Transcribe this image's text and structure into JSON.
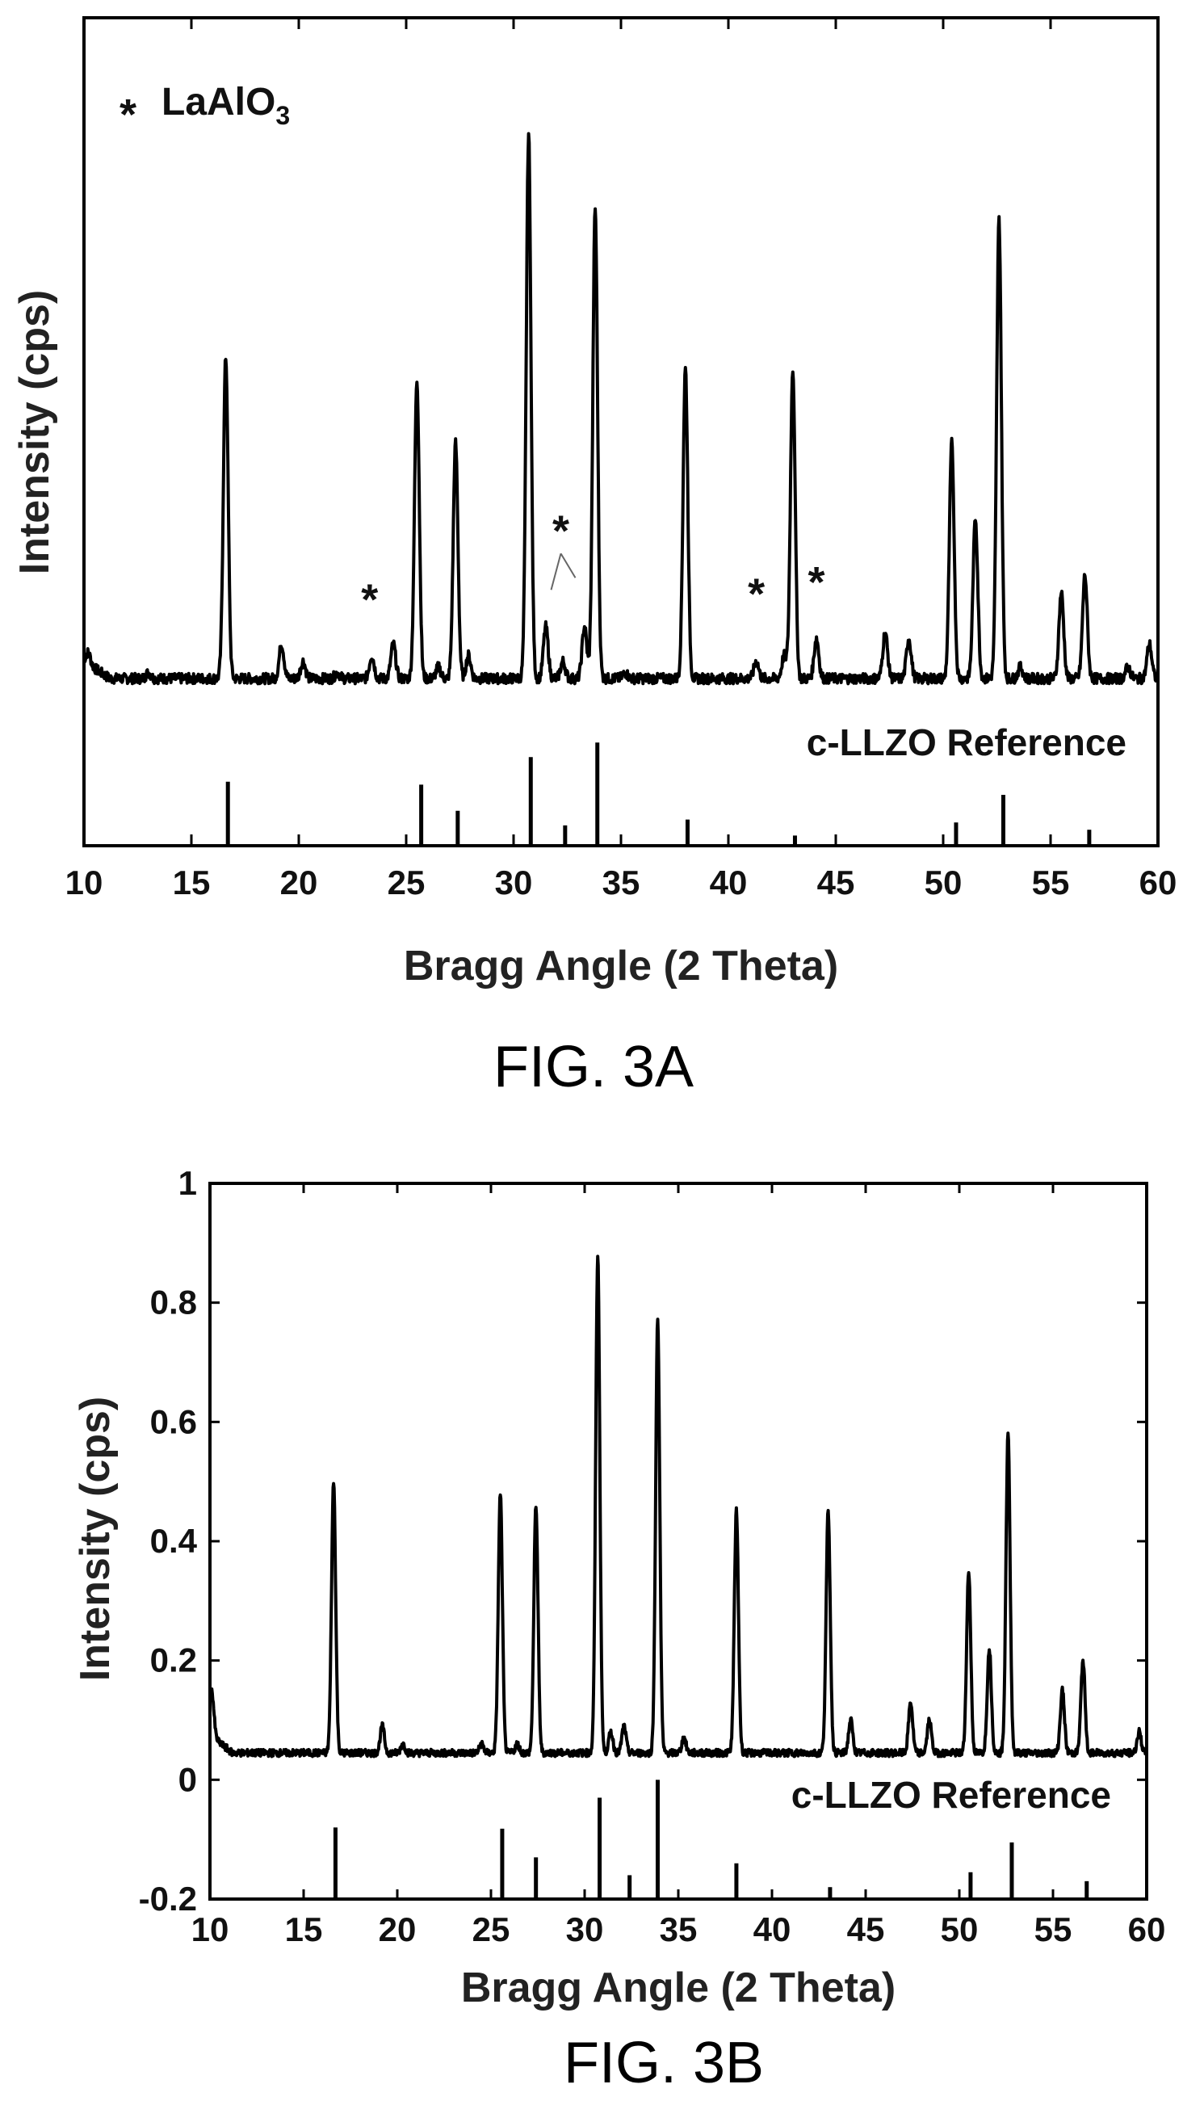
{
  "chart_data": [
    {
      "type": "line",
      "figure_label": "FIG. 3A",
      "xlabel": "Bragg Angle (2 Theta)",
      "ylabel": "Intensity (cps)",
      "xlim": [
        10,
        60
      ],
      "xticks": [
        10,
        15,
        20,
        25,
        30,
        35,
        40,
        45,
        50,
        55,
        60
      ],
      "yticks_shown": false,
      "grid": false,
      "legend": {
        "marker": "*",
        "label": "LaAlO",
        "subscript": "3",
        "position": "top-left"
      },
      "reference_label": "c-LLZO Reference",
      "baseline": 0.05,
      "peaks": [
        {
          "x": 10.2,
          "y": 0.07
        },
        {
          "x": 13.0,
          "y": 0.06
        },
        {
          "x": 16.6,
          "y": 0.61
        },
        {
          "x": 19.2,
          "y": 0.11
        },
        {
          "x": 20.2,
          "y": 0.08
        },
        {
          "x": 21.8,
          "y": 0.06
        },
        {
          "x": 23.4,
          "y": 0.09
        },
        {
          "x": 24.4,
          "y": 0.11
        },
        {
          "x": 25.5,
          "y": 0.57
        },
        {
          "x": 26.5,
          "y": 0.07
        },
        {
          "x": 27.3,
          "y": 0.46
        },
        {
          "x": 27.9,
          "y": 0.09
        },
        {
          "x": 30.7,
          "y": 1.0
        },
        {
          "x": 31.5,
          "y": 0.14
        },
        {
          "x": 32.3,
          "y": 0.08
        },
        {
          "x": 33.3,
          "y": 0.14
        },
        {
          "x": 33.8,
          "y": 0.87
        },
        {
          "x": 35.2,
          "y": 0.06
        },
        {
          "x": 38.0,
          "y": 0.59
        },
        {
          "x": 41.3,
          "y": 0.08
        },
        {
          "x": 42.6,
          "y": 0.09
        },
        {
          "x": 43.0,
          "y": 0.59
        },
        {
          "x": 44.1,
          "y": 0.12
        },
        {
          "x": 47.3,
          "y": 0.13
        },
        {
          "x": 48.4,
          "y": 0.12
        },
        {
          "x": 50.4,
          "y": 0.46
        },
        {
          "x": 51.5,
          "y": 0.33
        },
        {
          "x": 52.6,
          "y": 0.85
        },
        {
          "x": 53.6,
          "y": 0.07
        },
        {
          "x": 55.5,
          "y": 0.2
        },
        {
          "x": 56.6,
          "y": 0.23
        },
        {
          "x": 58.6,
          "y": 0.07
        },
        {
          "x": 59.6,
          "y": 0.11
        }
      ],
      "reference_lines": [
        {
          "x": 16.7,
          "h": 0.44
        },
        {
          "x": 25.7,
          "h": 0.42
        },
        {
          "x": 27.4,
          "h": 0.24
        },
        {
          "x": 30.8,
          "h": 0.61
        },
        {
          "x": 32.4,
          "h": 0.14
        },
        {
          "x": 33.9,
          "h": 0.71
        },
        {
          "x": 38.1,
          "h": 0.18
        },
        {
          "x": 43.1,
          "h": 0.07
        },
        {
          "x": 50.6,
          "h": 0.16
        },
        {
          "x": 52.8,
          "h": 0.35
        },
        {
          "x": 56.8,
          "h": 0.11
        }
      ],
      "annotations": [
        {
          "x": 23.3,
          "y": 0.19,
          "text": "*"
        },
        {
          "x": 32.2,
          "y": 0.31,
          "text": "*"
        },
        {
          "x": 41.3,
          "y": 0.2,
          "text": "*"
        },
        {
          "x": 44.1,
          "y": 0.22,
          "text": "*"
        }
      ]
    },
    {
      "type": "line",
      "figure_label": "FIG. 3B",
      "xlabel": "Bragg Angle (2 Theta)",
      "ylabel": "Intensity (cps)",
      "xlim": [
        10,
        60
      ],
      "ylim": [
        -0.2,
        1
      ],
      "xticks": [
        10,
        15,
        20,
        25,
        30,
        35,
        40,
        45,
        50,
        55,
        60
      ],
      "yticks": [
        -0.2,
        0,
        0.2,
        0.4,
        0.6,
        0.8,
        1
      ],
      "ytick_labels": [
        "-0.2",
        "0",
        "0.2",
        "0.4",
        "0.6",
        "0.8",
        "1"
      ],
      "grid": false,
      "reference_label": "c-LLZO Reference",
      "baseline": 0.045,
      "peaks": [
        {
          "x": 10.1,
          "y": 0.12
        },
        {
          "x": 16.6,
          "y": 0.5
        },
        {
          "x": 19.2,
          "y": 0.09
        },
        {
          "x": 20.3,
          "y": 0.06
        },
        {
          "x": 24.5,
          "y": 0.06
        },
        {
          "x": 25.5,
          "y": 0.48
        },
        {
          "x": 26.4,
          "y": 0.06
        },
        {
          "x": 27.4,
          "y": 0.46
        },
        {
          "x": 30.7,
          "y": 0.88
        },
        {
          "x": 31.4,
          "y": 0.08
        },
        {
          "x": 32.1,
          "y": 0.09
        },
        {
          "x": 33.9,
          "y": 0.77
        },
        {
          "x": 35.3,
          "y": 0.07
        },
        {
          "x": 38.1,
          "y": 0.45
        },
        {
          "x": 43.0,
          "y": 0.45
        },
        {
          "x": 44.2,
          "y": 0.1
        },
        {
          "x": 47.4,
          "y": 0.13
        },
        {
          "x": 48.4,
          "y": 0.1
        },
        {
          "x": 50.5,
          "y": 0.35
        },
        {
          "x": 51.6,
          "y": 0.22
        },
        {
          "x": 52.6,
          "y": 0.58
        },
        {
          "x": 55.5,
          "y": 0.15
        },
        {
          "x": 56.6,
          "y": 0.2
        },
        {
          "x": 59.6,
          "y": 0.08
        }
      ],
      "reference_lines": [
        {
          "x": 16.7,
          "y": -0.08
        },
        {
          "x": 25.6,
          "y": -0.082
        },
        {
          "x": 27.4,
          "y": -0.13
        },
        {
          "x": 30.8,
          "y": -0.03
        },
        {
          "x": 32.4,
          "y": -0.16
        },
        {
          "x": 33.9,
          "y": 0.0
        },
        {
          "x": 38.1,
          "y": -0.14
        },
        {
          "x": 43.1,
          "y": -0.18
        },
        {
          "x": 50.6,
          "y": -0.155
        },
        {
          "x": 52.8,
          "y": -0.105
        },
        {
          "x": 56.8,
          "y": -0.17
        }
      ]
    }
  ]
}
